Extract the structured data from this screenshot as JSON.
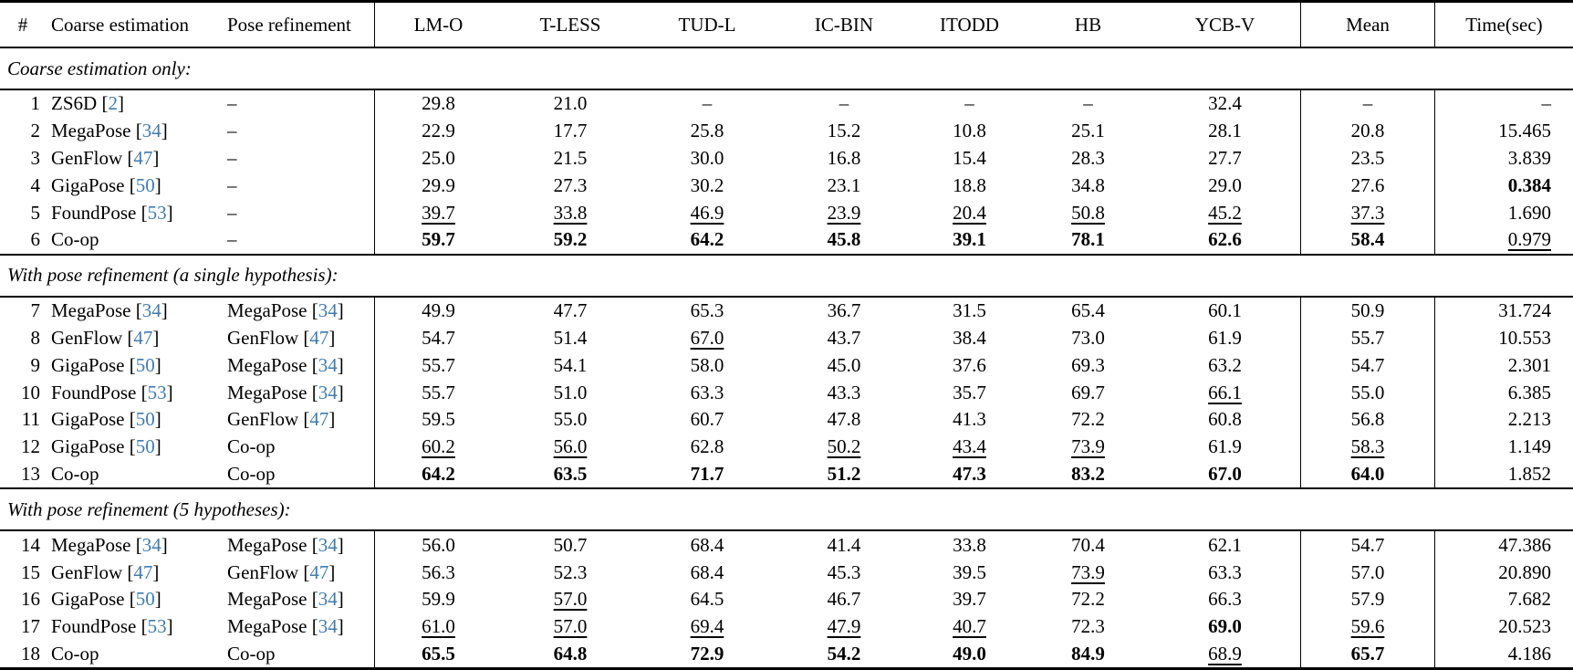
{
  "colors": {
    "citation": "#3e7cb1",
    "text": "#000000",
    "background": "#ffffff",
    "rule": "#000000"
  },
  "table": {
    "columns": [
      {
        "key": "num",
        "label": "#"
      },
      {
        "key": "coarse",
        "label": "Coarse estimation"
      },
      {
        "key": "refine",
        "label": "Pose refinement"
      },
      {
        "key": "lmo",
        "label": "LM-O"
      },
      {
        "key": "tless",
        "label": "T-LESS"
      },
      {
        "key": "tudl",
        "label": "TUD-L"
      },
      {
        "key": "icbin",
        "label": "IC-BIN"
      },
      {
        "key": "itodd",
        "label": "ITODD"
      },
      {
        "key": "hb",
        "label": "HB"
      },
      {
        "key": "ycbv",
        "label": "YCB-V"
      },
      {
        "key": "mean",
        "label": "Mean"
      },
      {
        "key": "time",
        "label": "Time(sec)"
      }
    ],
    "sections": [
      {
        "title": "Coarse estimation only:",
        "rows": [
          {
            "num": "1",
            "coarse": {
              "name": "ZS6D",
              "cite": "2"
            },
            "refine": {
              "name": "–"
            },
            "cells": [
              {
                "v": "29.8"
              },
              {
                "v": "21.0"
              },
              {
                "v": "–"
              },
              {
                "v": "–"
              },
              {
                "v": "–"
              },
              {
                "v": "–"
              },
              {
                "v": "32.4"
              },
              {
                "v": "–"
              },
              {
                "v": "–"
              }
            ]
          },
          {
            "num": "2",
            "coarse": {
              "name": "MegaPose",
              "cite": "34"
            },
            "refine": {
              "name": "–"
            },
            "cells": [
              {
                "v": "22.9"
              },
              {
                "v": "17.7"
              },
              {
                "v": "25.8"
              },
              {
                "v": "15.2"
              },
              {
                "v": "10.8"
              },
              {
                "v": "25.1"
              },
              {
                "v": "28.1"
              },
              {
                "v": "20.8"
              },
              {
                "v": "15.465"
              }
            ]
          },
          {
            "num": "3",
            "coarse": {
              "name": "GenFlow",
              "cite": "47"
            },
            "refine": {
              "name": "–"
            },
            "cells": [
              {
                "v": "25.0"
              },
              {
                "v": "21.5"
              },
              {
                "v": "30.0"
              },
              {
                "v": "16.8"
              },
              {
                "v": "15.4"
              },
              {
                "v": "28.3"
              },
              {
                "v": "27.7"
              },
              {
                "v": "23.5"
              },
              {
                "v": "3.839"
              }
            ]
          },
          {
            "num": "4",
            "coarse": {
              "name": "GigaPose",
              "cite": "50"
            },
            "refine": {
              "name": "–"
            },
            "cells": [
              {
                "v": "29.9"
              },
              {
                "v": "27.3"
              },
              {
                "v": "30.2"
              },
              {
                "v": "23.1"
              },
              {
                "v": "18.8"
              },
              {
                "v": "34.8"
              },
              {
                "v": "29.0"
              },
              {
                "v": "27.6"
              },
              {
                "v": "0.384",
                "s": "b"
              }
            ]
          },
          {
            "num": "5",
            "coarse": {
              "name": "FoundPose",
              "cite": "53"
            },
            "refine": {
              "name": "–"
            },
            "cells": [
              {
                "v": "39.7",
                "s": "u"
              },
              {
                "v": "33.8",
                "s": "u"
              },
              {
                "v": "46.9",
                "s": "u"
              },
              {
                "v": "23.9",
                "s": "u"
              },
              {
                "v": "20.4",
                "s": "u"
              },
              {
                "v": "50.8",
                "s": "u"
              },
              {
                "v": "45.2",
                "s": "u"
              },
              {
                "v": "37.3",
                "s": "u"
              },
              {
                "v": "1.690"
              }
            ]
          },
          {
            "num": "6",
            "coarse": {
              "name": "Co-op"
            },
            "refine": {
              "name": "–"
            },
            "cells": [
              {
                "v": "59.7",
                "s": "b"
              },
              {
                "v": "59.2",
                "s": "b"
              },
              {
                "v": "64.2",
                "s": "b"
              },
              {
                "v": "45.8",
                "s": "b"
              },
              {
                "v": "39.1",
                "s": "b"
              },
              {
                "v": "78.1",
                "s": "b"
              },
              {
                "v": "62.6",
                "s": "b"
              },
              {
                "v": "58.4",
                "s": "b"
              },
              {
                "v": "0.979",
                "s": "u"
              }
            ]
          }
        ]
      },
      {
        "title": "With pose refinement (a single hypothesis):",
        "rows": [
          {
            "num": "7",
            "coarse": {
              "name": "MegaPose",
              "cite": "34"
            },
            "refine": {
              "name": "MegaPose",
              "cite": "34"
            },
            "cells": [
              {
                "v": "49.9"
              },
              {
                "v": "47.7"
              },
              {
                "v": "65.3"
              },
              {
                "v": "36.7"
              },
              {
                "v": "31.5"
              },
              {
                "v": "65.4"
              },
              {
                "v": "60.1"
              },
              {
                "v": "50.9"
              },
              {
                "v": "31.724"
              }
            ]
          },
          {
            "num": "8",
            "coarse": {
              "name": "GenFlow",
              "cite": "47"
            },
            "refine": {
              "name": "GenFlow",
              "cite": "47"
            },
            "cells": [
              {
                "v": "54.7"
              },
              {
                "v": "51.4"
              },
              {
                "v": "67.0",
                "s": "u"
              },
              {
                "v": "43.7"
              },
              {
                "v": "38.4"
              },
              {
                "v": "73.0"
              },
              {
                "v": "61.9"
              },
              {
                "v": "55.7"
              },
              {
                "v": "10.553"
              }
            ]
          },
          {
            "num": "9",
            "coarse": {
              "name": "GigaPose",
              "cite": "50"
            },
            "refine": {
              "name": "MegaPose",
              "cite": "34"
            },
            "cells": [
              {
                "v": "55.7"
              },
              {
                "v": "54.1"
              },
              {
                "v": "58.0"
              },
              {
                "v": "45.0"
              },
              {
                "v": "37.6"
              },
              {
                "v": "69.3"
              },
              {
                "v": "63.2"
              },
              {
                "v": "54.7"
              },
              {
                "v": "2.301"
              }
            ]
          },
          {
            "num": "10",
            "coarse": {
              "name": "FoundPose",
              "cite": "53"
            },
            "refine": {
              "name": "MegaPose",
              "cite": "34"
            },
            "cells": [
              {
                "v": "55.7"
              },
              {
                "v": "51.0"
              },
              {
                "v": "63.3"
              },
              {
                "v": "43.3"
              },
              {
                "v": "35.7"
              },
              {
                "v": "69.7"
              },
              {
                "v": "66.1",
                "s": "u"
              },
              {
                "v": "55.0"
              },
              {
                "v": "6.385"
              }
            ]
          },
          {
            "num": "11",
            "coarse": {
              "name": "GigaPose",
              "cite": "50"
            },
            "refine": {
              "name": "GenFlow",
              "cite": "47"
            },
            "cells": [
              {
                "v": "59.5"
              },
              {
                "v": "55.0"
              },
              {
                "v": "60.7"
              },
              {
                "v": "47.8"
              },
              {
                "v": "41.3"
              },
              {
                "v": "72.2"
              },
              {
                "v": "60.8"
              },
              {
                "v": "56.8"
              },
              {
                "v": "2.213"
              }
            ]
          },
          {
            "num": "12",
            "coarse": {
              "name": "GigaPose",
              "cite": "50"
            },
            "refine": {
              "name": "Co-op"
            },
            "cells": [
              {
                "v": "60.2",
                "s": "u"
              },
              {
                "v": "56.0",
                "s": "u"
              },
              {
                "v": "62.8"
              },
              {
                "v": "50.2",
                "s": "u"
              },
              {
                "v": "43.4",
                "s": "u"
              },
              {
                "v": "73.9",
                "s": "u"
              },
              {
                "v": "61.9"
              },
              {
                "v": "58.3",
                "s": "u"
              },
              {
                "v": "1.149"
              }
            ]
          },
          {
            "num": "13",
            "coarse": {
              "name": "Co-op"
            },
            "refine": {
              "name": "Co-op"
            },
            "cells": [
              {
                "v": "64.2",
                "s": "b"
              },
              {
                "v": "63.5",
                "s": "b"
              },
              {
                "v": "71.7",
                "s": "b"
              },
              {
                "v": "51.2",
                "s": "b"
              },
              {
                "v": "47.3",
                "s": "b"
              },
              {
                "v": "83.2",
                "s": "b"
              },
              {
                "v": "67.0",
                "s": "b"
              },
              {
                "v": "64.0",
                "s": "b"
              },
              {
                "v": "1.852"
              }
            ]
          }
        ]
      },
      {
        "title": "With pose refinement (5 hypotheses):",
        "rows": [
          {
            "num": "14",
            "coarse": {
              "name": "MegaPose",
              "cite": "34"
            },
            "refine": {
              "name": "MegaPose",
              "cite": "34"
            },
            "cells": [
              {
                "v": "56.0"
              },
              {
                "v": "50.7"
              },
              {
                "v": "68.4"
              },
              {
                "v": "41.4"
              },
              {
                "v": "33.8"
              },
              {
                "v": "70.4"
              },
              {
                "v": "62.1"
              },
              {
                "v": "54.7"
              },
              {
                "v": "47.386"
              }
            ]
          },
          {
            "num": "15",
            "coarse": {
              "name": "GenFlow",
              "cite": "47"
            },
            "refine": {
              "name": "GenFlow",
              "cite": "47"
            },
            "cells": [
              {
                "v": "56.3"
              },
              {
                "v": "52.3"
              },
              {
                "v": "68.4"
              },
              {
                "v": "45.3"
              },
              {
                "v": "39.5"
              },
              {
                "v": "73.9",
                "s": "u"
              },
              {
                "v": "63.3"
              },
              {
                "v": "57.0"
              },
              {
                "v": "20.890"
              }
            ]
          },
          {
            "num": "16",
            "coarse": {
              "name": "GigaPose",
              "cite": "50"
            },
            "refine": {
              "name": "MegaPose",
              "cite": "34"
            },
            "cells": [
              {
                "v": "59.9"
              },
              {
                "v": "57.0",
                "s": "u"
              },
              {
                "v": "64.5"
              },
              {
                "v": "46.7"
              },
              {
                "v": "39.7"
              },
              {
                "v": "72.2"
              },
              {
                "v": "66.3"
              },
              {
                "v": "57.9"
              },
              {
                "v": "7.682"
              }
            ]
          },
          {
            "num": "17",
            "coarse": {
              "name": "FoundPose",
              "cite": "53"
            },
            "refine": {
              "name": "MegaPose",
              "cite": "34"
            },
            "cells": [
              {
                "v": "61.0",
                "s": "u"
              },
              {
                "v": "57.0",
                "s": "u"
              },
              {
                "v": "69.4",
                "s": "u"
              },
              {
                "v": "47.9",
                "s": "u"
              },
              {
                "v": "40.7",
                "s": "u"
              },
              {
                "v": "72.3"
              },
              {
                "v": "69.0",
                "s": "b"
              },
              {
                "v": "59.6",
                "s": "u"
              },
              {
                "v": "20.523"
              }
            ]
          },
          {
            "num": "18",
            "coarse": {
              "name": "Co-op"
            },
            "refine": {
              "name": "Co-op"
            },
            "cells": [
              {
                "v": "65.5",
                "s": "b"
              },
              {
                "v": "64.8",
                "s": "b"
              },
              {
                "v": "72.9",
                "s": "b"
              },
              {
                "v": "54.2",
                "s": "b"
              },
              {
                "v": "49.0",
                "s": "b"
              },
              {
                "v": "84.9",
                "s": "b"
              },
              {
                "v": "68.9",
                "s": "u"
              },
              {
                "v": "65.7",
                "s": "b"
              },
              {
                "v": "4.186"
              }
            ]
          }
        ]
      }
    ]
  }
}
